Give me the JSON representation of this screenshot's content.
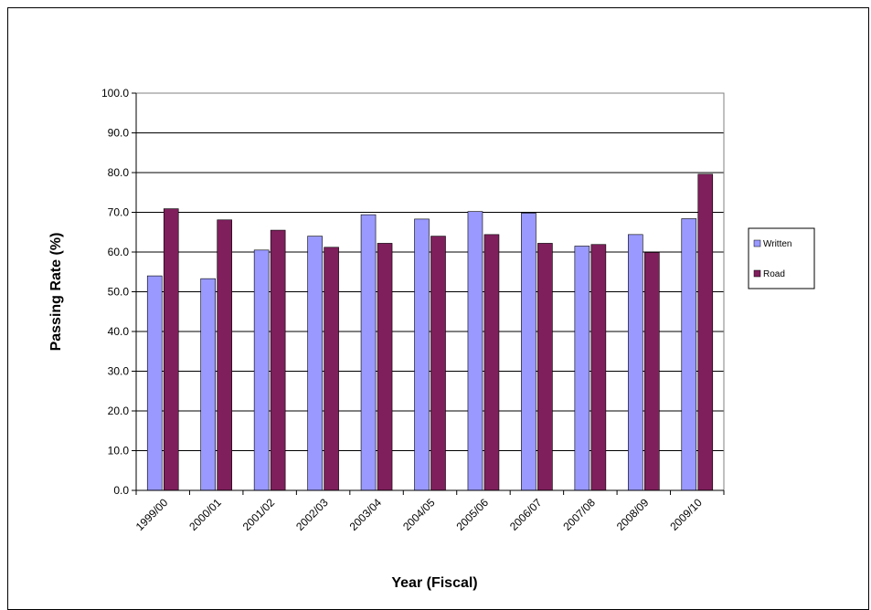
{
  "chart_data": {
    "type": "bar",
    "title": "",
    "xlabel": "Year (Fiscal)",
    "ylabel": "Passing Rate (%)",
    "ylim": [
      0,
      100
    ],
    "ytick_step": 10,
    "ytick_labels": [
      "0.0",
      "10.0",
      "20.0",
      "30.0",
      "40.0",
      "50.0",
      "60.0",
      "70.0",
      "80.0",
      "90.0",
      "100.0"
    ],
    "grid": true,
    "legend_position": "right",
    "categories": [
      "1999/00",
      "2000/01",
      "2001/02",
      "2002/03",
      "2003/04",
      "2004/05",
      "2005/06",
      "2006/07",
      "2007/08",
      "2008/09",
      "2009/10"
    ],
    "series": [
      {
        "name": "Written",
        "color": "#9999ff",
        "values": [
          54.0,
          53.3,
          60.5,
          64.0,
          69.4,
          68.3,
          70.2,
          69.8,
          61.5,
          64.4,
          68.4
        ]
      },
      {
        "name": "Road",
        "color": "#7f1f5c",
        "values": [
          70.9,
          68.1,
          65.5,
          61.2,
          62.2,
          64.0,
          64.4,
          62.2,
          61.9,
          59.9,
          79.6
        ]
      }
    ]
  }
}
